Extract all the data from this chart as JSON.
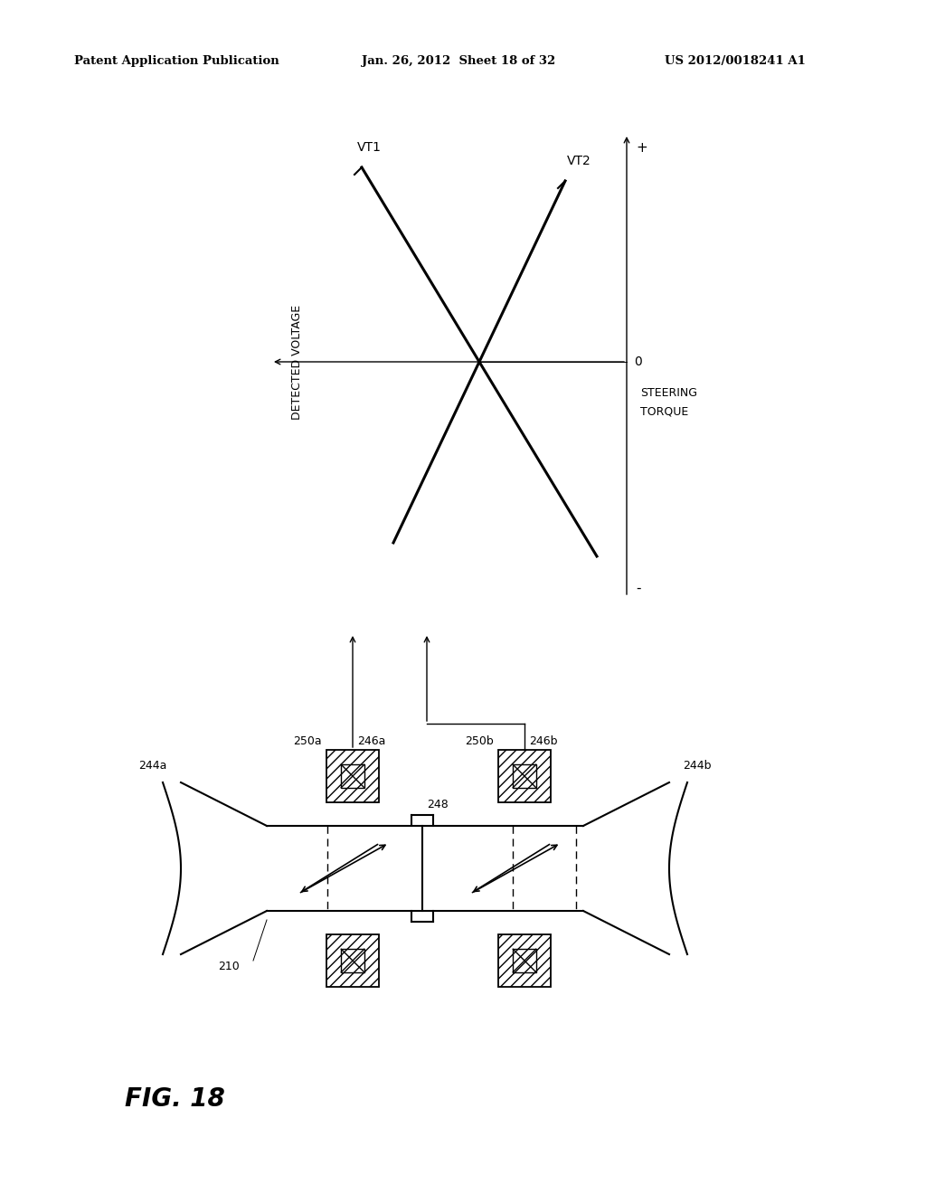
{
  "header_left": "Patent Application Publication",
  "header_mid": "Jan. 26, 2012  Sheet 18 of 32",
  "header_right": "US 2012/0018241 A1",
  "fig_label": "FIG. 18",
  "graph": {
    "vt1_label": "VT1",
    "vt2_label": "VT2",
    "detected_voltage": "DETECTED VOLTAGE",
    "steering_torque_1": "STEERING",
    "steering_torque_2": "TORQUE",
    "plus_label": "+",
    "minus_label": "-",
    "zero_label": "0"
  },
  "labels": {
    "210": "210",
    "244a": "244a",
    "244b": "244b",
    "246a": "246a",
    "246b": "246b",
    "248": "248",
    "250a": "250a",
    "250b": "250b"
  }
}
